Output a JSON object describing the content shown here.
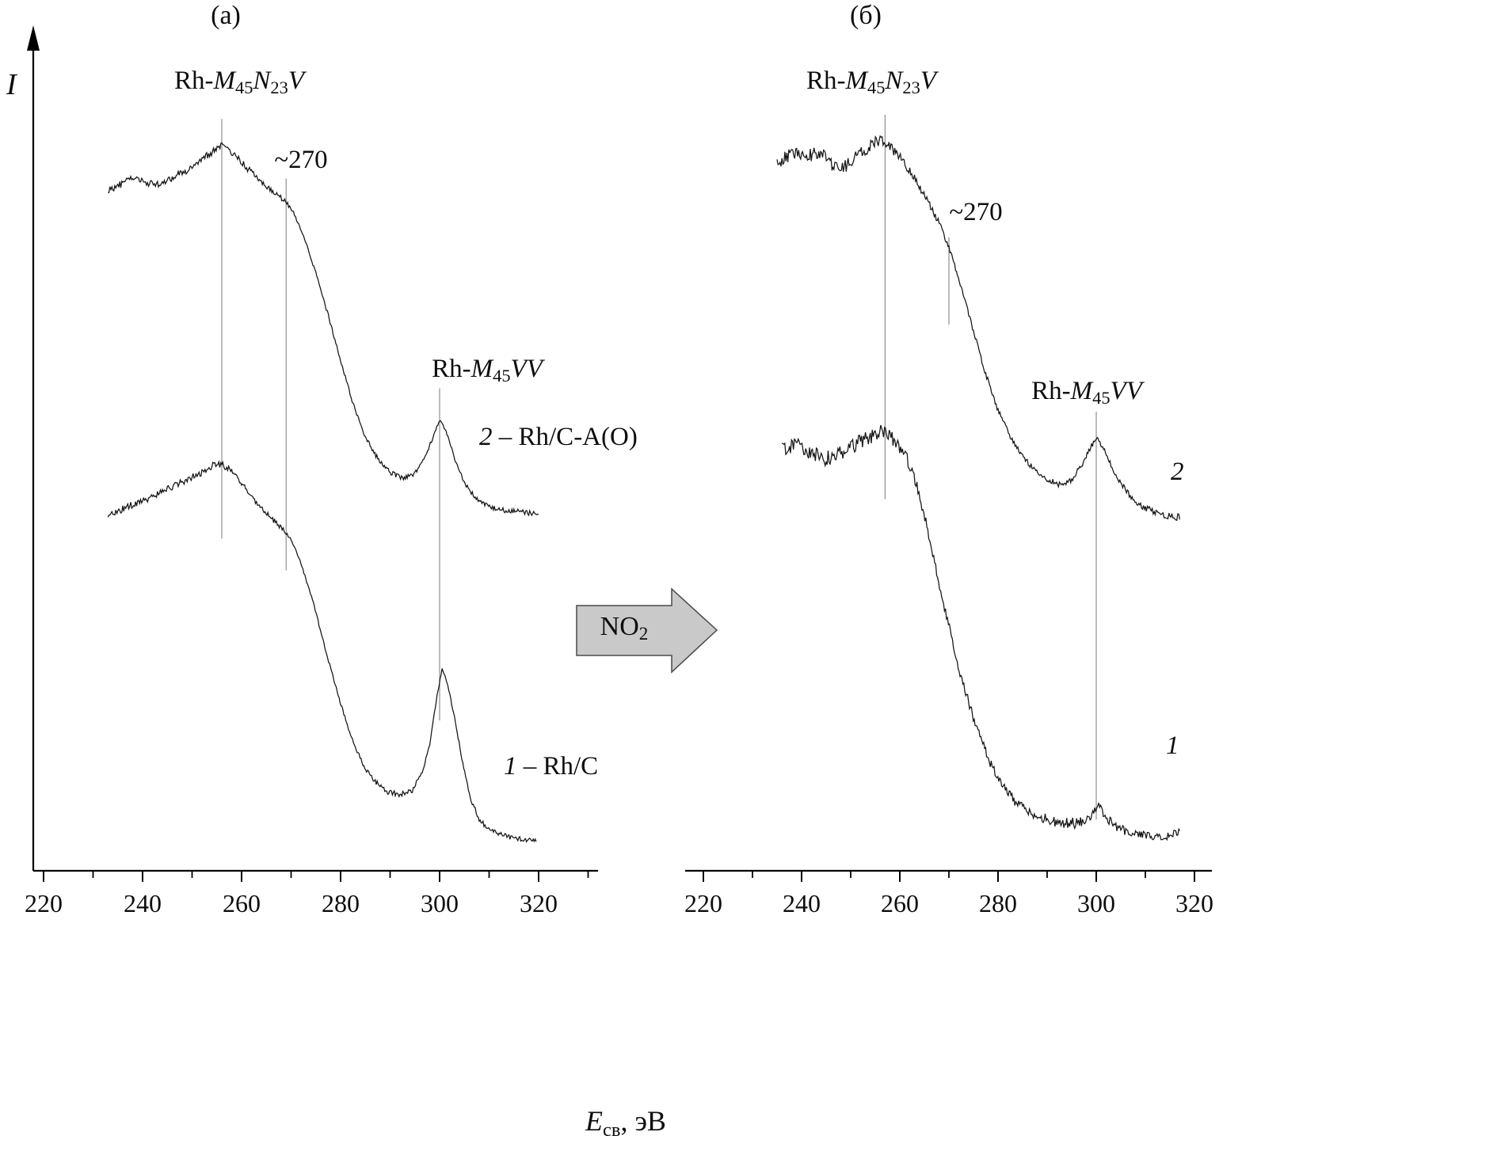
{
  "labels": {
    "panel_a": "(а)",
    "panel_b": "(б)",
    "y_axis": "I",
    "x_axis": {
      "e": "E",
      "sub": "св",
      "rest": ", эВ"
    },
    "m45n23v": {
      "rh": "Rh-",
      "m": "M",
      "s45": "45",
      "n": "N",
      "s23": "23",
      "v": "V"
    },
    "m45vv": {
      "rh": "Rh-",
      "m": "M",
      "s45": "45",
      "vv": "VV"
    },
    "approx270": "~270",
    "curve2": {
      "num": "2",
      "rest": " – Rh/C-A(O)"
    },
    "curve1": {
      "num": "1",
      "rest": " – Rh/C"
    },
    "no2": {
      "t": "NO",
      "sub": "2"
    }
  },
  "chart_data": {
    "type": "line",
    "title": "Auger spectra of Rh samples before (а) and after (б) NO2 treatment",
    "xlabel": "Eсв, эВ",
    "ylabel": "I",
    "panels": [
      {
        "id": "a",
        "title": "(а)",
        "x_ticks": [
          220,
          240,
          260,
          280,
          300,
          320
        ],
        "annotations": [
          "Rh-M₄₅N₂₃V",
          "~270",
          "Rh-M₄₅VV",
          "2 – Rh/C-A(O)",
          "1 – Rh/C"
        ],
        "guides": [
          {
            "x": 256,
            "u1": 89.6,
            "u2": 39.6
          },
          {
            "x": 269,
            "u1": 82.5,
            "u2": 35.8
          },
          {
            "x": 300,
            "u1": 57.5,
            "u2": 17.9
          }
        ],
        "series": [
          {
            "name": "2 – Rh/C-A(O)",
            "points": [
              [
                233,
                81.1,
                0.4
              ],
              [
                236,
                81.9,
                0.4
              ],
              [
                238,
                82.6,
                0.4
              ],
              [
                240,
                82.1,
                0.4
              ],
              [
                243,
                81.8,
                0.4
              ],
              [
                246,
                82.6,
                0.4
              ],
              [
                249,
                83.5,
                0.4
              ],
              [
                252,
                84.9,
                0.4
              ],
              [
                254.5,
                85.8,
                0.4
              ],
              [
                256,
                86.4,
                0.4
              ],
              [
                258,
                85.6,
                0.4
              ],
              [
                261,
                83.8,
                0.4
              ],
              [
                264,
                82.1,
                0.3
              ],
              [
                266.5,
                80.8,
                0.3
              ],
              [
                268.5,
                80.0,
                0.3
              ],
              [
                270.5,
                78.5,
                0.2
              ],
              [
                272.5,
                75.7,
                0.2
              ],
              [
                275,
                71.2,
                0.2
              ],
              [
                277.5,
                66.2,
                0.2
              ],
              [
                280,
                60.8,
                0.2
              ],
              [
                282.5,
                55.7,
                0.2
              ],
              [
                285,
                51.7,
                0.2
              ],
              [
                287.5,
                49.1,
                0.3
              ],
              [
                290,
                47.5,
                0.3
              ],
              [
                292.5,
                46.8,
                0.3
              ],
              [
                295,
                47.4,
                0.3
              ],
              [
                297,
                49.2,
                0.3
              ],
              [
                298.5,
                51.4,
                0.2
              ],
              [
                300,
                53.8,
                0.2
              ],
              [
                301.5,
                52.1,
                0.2
              ],
              [
                303,
                49.2,
                0.2
              ],
              [
                305,
                46.4,
                0.3
              ],
              [
                307,
                44.5,
                0.3
              ],
              [
                309.5,
                43.5,
                0.3
              ],
              [
                312,
                43.0,
                0.3
              ],
              [
                316,
                42.8,
                0.3
              ],
              [
                320,
                42.5,
                0.3
              ]
            ]
          },
          {
            "name": "1 – Rh/C",
            "points": [
              [
                233,
                42.3,
                0.4
              ],
              [
                237,
                43.4,
                0.4
              ],
              [
                241,
                44.3,
                0.4
              ],
              [
                245,
                45.5,
                0.4
              ],
              [
                249,
                46.6,
                0.4
              ],
              [
                252,
                47.5,
                0.4
              ],
              [
                255,
                48.6,
                0.4
              ],
              [
                257,
                48.1,
                0.4
              ],
              [
                260,
                46.2,
                0.3
              ],
              [
                263,
                43.9,
                0.3
              ],
              [
                265.5,
                42.3,
                0.3
              ],
              [
                268,
                40.9,
                0.3
              ],
              [
                270,
                39.4,
                0.2
              ],
              [
                272,
                36.6,
                0.2
              ],
              [
                274.5,
                31.9,
                0.2
              ],
              [
                277,
                26.2,
                0.2
              ],
              [
                279.5,
                20.9,
                0.2
              ],
              [
                282,
                16.2,
                0.2
              ],
              [
                284.5,
                12.7,
                0.3
              ],
              [
                287,
                10.6,
                0.3
              ],
              [
                289.5,
                9.4,
                0.3
              ],
              [
                292,
                9.1,
                0.3
              ],
              [
                294.5,
                9.6,
                0.3
              ],
              [
                296.5,
                11.8,
                0.2
              ],
              [
                298,
                15.1,
                0.2
              ],
              [
                299.5,
                20.9,
                0.15
              ],
              [
                300.5,
                24.1,
                0.15
              ],
              [
                301.5,
                22.5,
                0.15
              ],
              [
                303,
                18.4,
                0.2
              ],
              [
                304.5,
                13.4,
                0.2
              ],
              [
                306,
                9.0,
                0.25
              ],
              [
                308,
                6.1,
                0.3
              ],
              [
                310.5,
                4.7,
                0.3
              ],
              [
                313,
                4.2,
                0.3
              ],
              [
                316,
                3.8,
                0.3
              ],
              [
                319.5,
                3.5,
                0.3
              ]
            ]
          }
        ]
      },
      {
        "id": "b",
        "title": "(б)",
        "x_ticks": [
          220,
          240,
          260,
          280,
          300,
          320
        ],
        "annotations": [
          "Rh-M₄₅N₂₃V",
          "~270",
          "Rh-M₄₅VV",
          "2",
          "1"
        ],
        "guides": [
          {
            "x": 257,
            "u1": 90.1,
            "u2": 44.3
          },
          {
            "x": 270,
            "u1": 75.5,
            "u2": 65.1
          },
          {
            "x": 300,
            "u1": 54.7,
            "u2": 6.1
          }
        ],
        "series": [
          {
            "name": "2",
            "points": [
              [
                235,
                84.4,
                0.8
              ],
              [
                239,
                85.8,
                0.8
              ],
              [
                241,
                85.1,
                0.8
              ],
              [
                243.5,
                85.7,
                0.8
              ],
              [
                246,
                84.2,
                0.8
              ],
              [
                248.5,
                83.8,
                0.8
              ],
              [
                251,
                84.9,
                0.8
              ],
              [
                253.5,
                86.2,
                0.8
              ],
              [
                256,
                87.2,
                0.7
              ],
              [
                258,
                86.4,
                0.7
              ],
              [
                260.5,
                84.7,
                0.6
              ],
              [
                263,
                82.5,
                0.5
              ],
              [
                265.5,
                80.0,
                0.4
              ],
              [
                268,
                77.2,
                0.35
              ],
              [
                270,
                74.3,
                0.3
              ],
              [
                272.5,
                69.6,
                0.3
              ],
              [
                275,
                64.3,
                0.3
              ],
              [
                277.5,
                59.2,
                0.3
              ],
              [
                280,
                54.9,
                0.3
              ],
              [
                282.5,
                51.7,
                0.3
              ],
              [
                285,
                49.4,
                0.3
              ],
              [
                287.5,
                47.7,
                0.35
              ],
              [
                290,
                46.6,
                0.35
              ],
              [
                292.5,
                46.0,
                0.35
              ],
              [
                295,
                46.6,
                0.35
              ],
              [
                297,
                48.3,
                0.3
              ],
              [
                298.5,
                50.0,
                0.3
              ],
              [
                300,
                51.7,
                0.3
              ],
              [
                301.5,
                50.4,
                0.3
              ],
              [
                303,
                48.3,
                0.3
              ],
              [
                305,
                46.2,
                0.35
              ],
              [
                307.5,
                44.3,
                0.35
              ],
              [
                310,
                43.2,
                0.4
              ],
              [
                313,
                42.5,
                0.4
              ],
              [
                317,
                42.1,
                0.4
              ]
            ]
          },
          {
            "name": "1",
            "points": [
              [
                236,
                50.2,
                0.9
              ],
              [
                239.5,
                50.9,
                0.9
              ],
              [
                242,
                49.8,
                0.9
              ],
              [
                245,
                49.1,
                0.9
              ],
              [
                248,
                49.8,
                0.9
              ],
              [
                251,
                50.8,
                0.9
              ],
              [
                254,
                51.7,
                0.9
              ],
              [
                256.5,
                52.4,
                0.8
              ],
              [
                259,
                51.3,
                0.8
              ],
              [
                261.5,
                49.1,
                0.7
              ],
              [
                263.5,
                45.8,
                0.6
              ],
              [
                265.5,
                41.0,
                0.6
              ],
              [
                267.5,
                35.7,
                0.6
              ],
              [
                269.5,
                30.4,
                0.6
              ],
              [
                271.5,
                25.3,
                0.6
              ],
              [
                274,
                20.0,
                0.6
              ],
              [
                276.5,
                15.6,
                0.6
              ],
              [
                279,
                12.1,
                0.6
              ],
              [
                281.5,
                9.6,
                0.6
              ],
              [
                284,
                8.0,
                0.6
              ],
              [
                287,
                6.8,
                0.6
              ],
              [
                290,
                6.1,
                0.6
              ],
              [
                293,
                5.7,
                0.65
              ],
              [
                296,
                5.7,
                0.65
              ],
              [
                298,
                5.8,
                0.6
              ],
              [
                299.5,
                6.8,
                0.55
              ],
              [
                300.5,
                7.7,
                0.55
              ],
              [
                302,
                6.4,
                0.55
              ],
              [
                304,
                5.2,
                0.55
              ],
              [
                307,
                4.5,
                0.5
              ],
              [
                310,
                4.2,
                0.5
              ],
              [
                313,
                4.0,
                0.5
              ],
              [
                315,
                4.2,
                0.5
              ],
              [
                317,
                4.5,
                0.5
              ]
            ]
          }
        ]
      }
    ]
  }
}
